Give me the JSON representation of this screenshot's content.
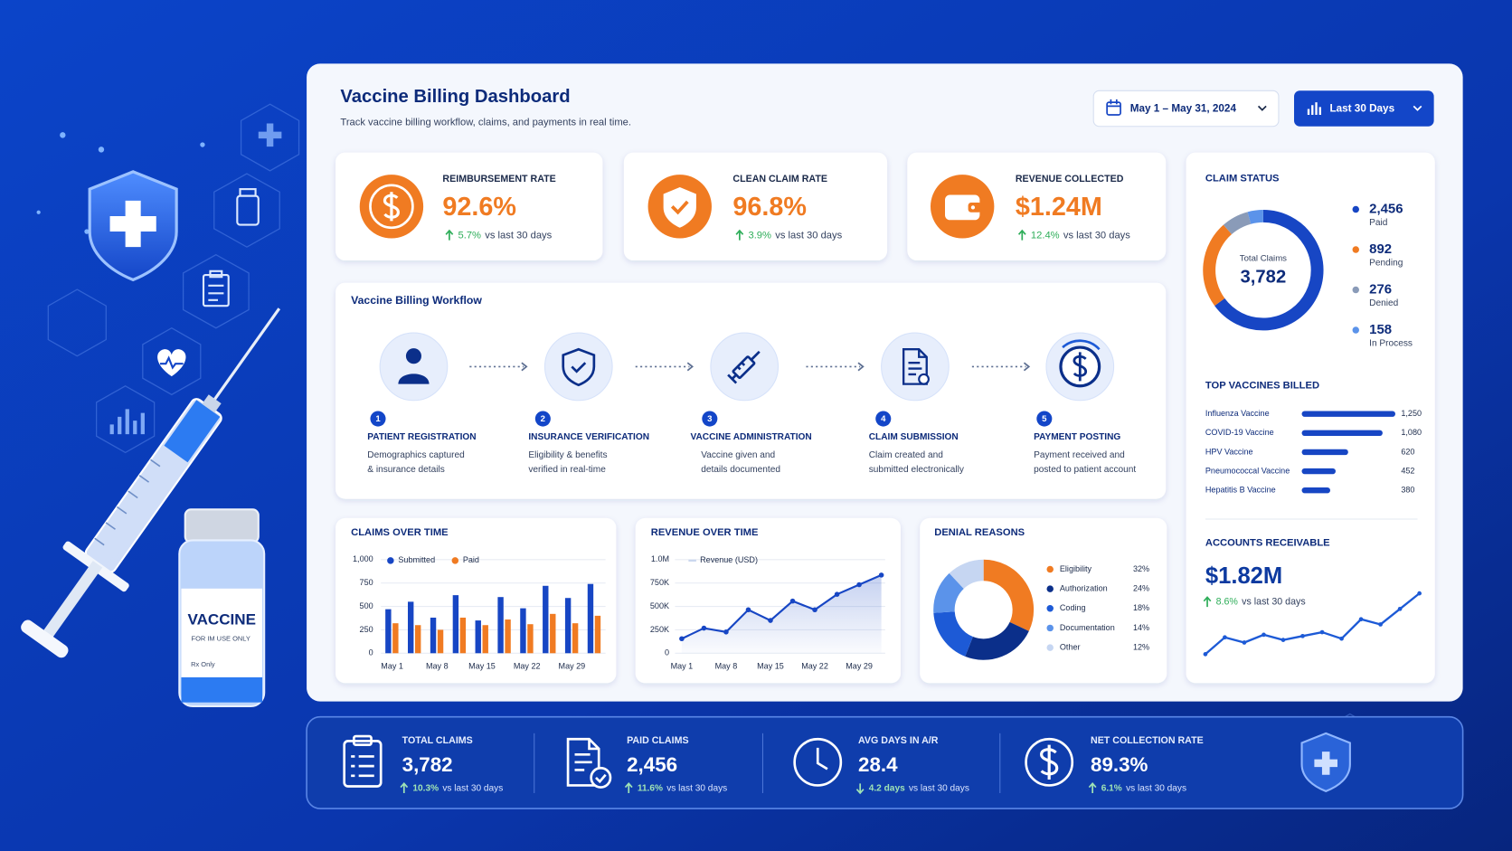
{
  "header": {
    "title": "Vaccine Billing Dashboard",
    "subtitle": "Track vaccine billing workflow, claims, and payments in real time.",
    "date_range": "May 1 – May 31, 2024",
    "period": "Last 30 Days"
  },
  "illustration": {
    "vial_label": "VACCINE",
    "vial_note": "FOR IM USE ONLY",
    "vial_rx": "Rx Only"
  },
  "kpis": [
    {
      "label": "REIMBURSEMENT RATE",
      "value": "92.6%",
      "change": "5.7%",
      "change_text": "vs last 30 days",
      "direction": "up"
    },
    {
      "label": "CLEAN CLAIM RATE",
      "value": "96.8%",
      "change": "3.9%",
      "change_text": "vs last 30 days",
      "direction": "up"
    },
    {
      "label": "REVENUE COLLECTED",
      "value": "$1.24M",
      "change": "12.4%",
      "change_text": "vs last 30 days",
      "direction": "up"
    }
  ],
  "workflow": {
    "title": "Vaccine Billing Workflow",
    "steps": [
      {
        "number": 1,
        "title": "PATIENT REGISTRATION",
        "lines": [
          "Demographics captured",
          "& insurance details"
        ]
      },
      {
        "number": 2,
        "title": "INSURANCE VERIFICATION",
        "lines": [
          "Eligibility & benefits",
          "verified in real-time"
        ]
      },
      {
        "number": 3,
        "title": "VACCINE ADMINISTRATION",
        "lines": [
          "Vaccine given and",
          "details documented"
        ]
      },
      {
        "number": 4,
        "title": "CLAIM SUBMISSION",
        "lines": [
          "Claim created and",
          "submitted electronically"
        ]
      },
      {
        "number": 5,
        "title": "PAYMENT POSTING",
        "lines": [
          "Payment received and",
          "posted to patient account"
        ]
      }
    ]
  },
  "claims_over_time": {
    "type": "bar",
    "title": "CLAIMS OVER TIME",
    "categories": [
      "May 1",
      null,
      "May 8",
      null,
      "May 15",
      null,
      "May 22",
      null,
      "May 29",
      null
    ],
    "series": [
      {
        "name": "Submitted",
        "color": "#1746c4",
        "values": [
          470,
          550,
          380,
          620,
          350,
          600,
          480,
          720,
          590,
          740
        ]
      },
      {
        "name": "Paid",
        "color": "#f07b22",
        "values": [
          320,
          300,
          250,
          380,
          300,
          360,
          310,
          420,
          320,
          400
        ]
      }
    ],
    "ylim": [
      0,
      1000
    ],
    "yticks": [
      0,
      250,
      500,
      750,
      {
        "value": 1000,
        "label": "1,000"
      }
    ],
    "grid": true,
    "legend": "top"
  },
  "revenue_over_time": {
    "type": "line",
    "title": "REVENUE OVER TIME",
    "categories": [
      "May 1",
      null,
      "May 8",
      null,
      "May 15",
      null,
      "May 22",
      null,
      "May 29",
      null
    ],
    "series": [
      {
        "name": "Revenue (USD)",
        "color": "#1746c4",
        "values": [
          155000,
          268000,
          227000,
          464000,
          350000,
          557000,
          464000,
          629000,
          732000,
          835000
        ]
      }
    ],
    "ylim": [
      0,
      1000000
    ],
    "yticks": [
      0,
      {
        "value": 250000,
        "label": "250K"
      },
      {
        "value": 500000,
        "label": "500K"
      },
      {
        "value": 750000,
        "label": "750K"
      },
      {
        "value": 1000000,
        "label": "1.0M"
      }
    ],
    "grid": true,
    "area": true,
    "legend": "top"
  },
  "denial_reasons": {
    "type": "pie",
    "title": "DENIAL REASONS",
    "categories": [
      "Eligibility",
      "Authorization",
      "Coding",
      "Documentation",
      "Other"
    ],
    "values": [
      32,
      24,
      18,
      14,
      12
    ],
    "value_labels": [
      "32%",
      "24%",
      "18%",
      "14%",
      "12%"
    ],
    "colors": [
      "#f07b22",
      "#0b2f8a",
      "#1d5ad6",
      "#5b93ea",
      "#c6d6f2"
    ],
    "donut": true
  },
  "claim_status": {
    "type": "pie",
    "title": "CLAIM STATUS",
    "center_label": "Total Claims",
    "total": "3,782",
    "categories": [
      "Paid",
      "Pending",
      "Denied",
      "In Process"
    ],
    "values": [
      2456,
      892,
      276,
      158
    ],
    "value_labels": [
      "2,456",
      "892",
      "276",
      "158"
    ],
    "colors": [
      "#1746c4",
      "#f07b22",
      "#8a9bb8",
      "#5b93ea"
    ],
    "donut": true
  },
  "top_vaccines": {
    "type": "bar",
    "orientation": "horizontal",
    "title": "TOP VACCINES BILLED",
    "categories": [
      "Influenza Vaccine",
      "COVID-19 Vaccine",
      "HPV Vaccine",
      "Pneumococcal Vaccine",
      "Hepatitis B Vaccine"
    ],
    "values": [
      1250,
      1080,
      620,
      452,
      380
    ],
    "value_labels": [
      "1,250",
      "1,080",
      "620",
      "452",
      "380"
    ],
    "color": "#1746c4"
  },
  "accounts_receivable": {
    "type": "line",
    "title": "ACCOUNTS RECEIVABLE",
    "value": "$1.82M",
    "change": "8.6%",
    "change_text": "vs last 30 days",
    "direction": "up",
    "values": [
      1.35,
      1.48,
      1.44,
      1.5,
      1.46,
      1.49,
      1.52,
      1.47,
      1.62,
      1.58,
      1.7,
      1.82
    ],
    "color": "#1d5ad6"
  },
  "summary": [
    {
      "label": "TOTAL CLAIMS",
      "value": "3,782",
      "change": "10.3%",
      "change_text": "vs last 30 days",
      "direction": "up"
    },
    {
      "label": "PAID CLAIMS",
      "value": "2,456",
      "change": "11.6%",
      "change_text": "vs last 30 days",
      "direction": "up"
    },
    {
      "label": "AVG DAYS IN A/R",
      "value": "28.4",
      "change": "4.2 days",
      "change_text": "vs last 30 days",
      "direction": "down"
    },
    {
      "label": "NET COLLECTION RATE",
      "value": "89.3%",
      "change": "6.1%",
      "change_text": "vs last 30 days",
      "direction": "up"
    }
  ]
}
